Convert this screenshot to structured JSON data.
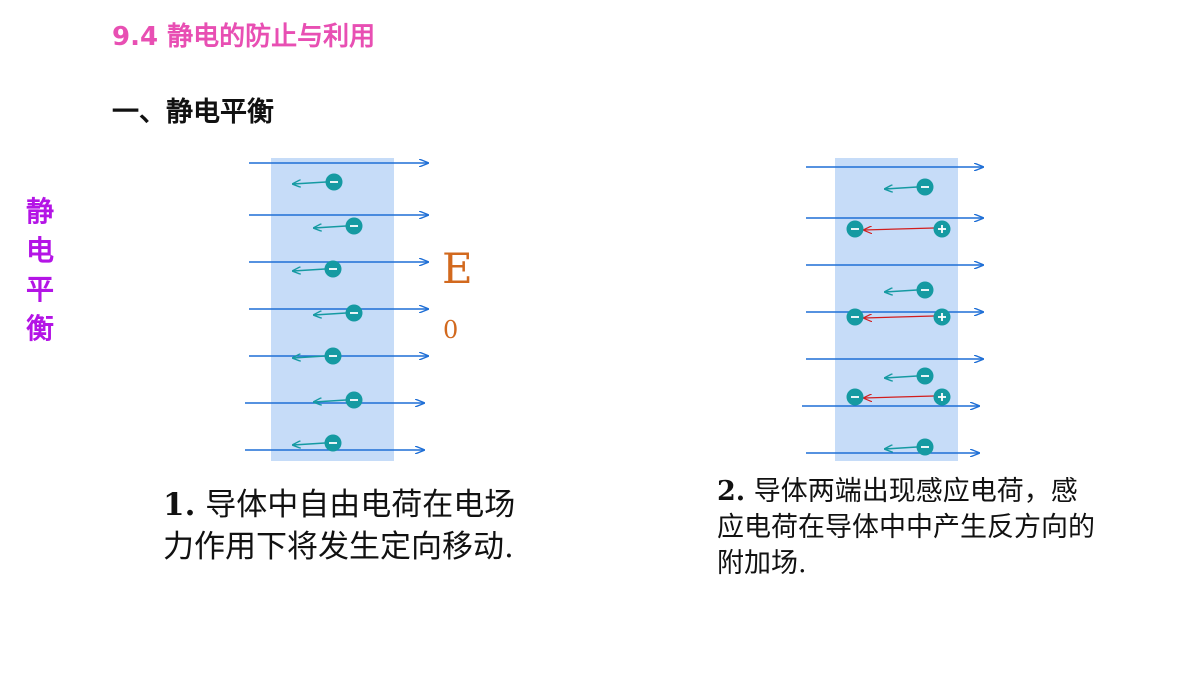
{
  "header": {
    "title": "9.4 静电的防止与利用",
    "section": "一、静电平衡"
  },
  "sidebar": {
    "chars": [
      "静",
      "电",
      "平",
      "衡"
    ]
  },
  "diagram1": {
    "field_label": "E",
    "field_subscript": "0"
  },
  "captions": {
    "c1_num": "1.",
    "c1_text": " 导体中自由电荷在电场力作用下将发生定向移动.",
    "c2_num": "2.",
    "c2_text": " 导体两端出现感应电荷，感应电荷在导体中中产生反方向的附加场."
  },
  "colors": {
    "title": "#e84fb3",
    "side": "#b414e6",
    "field_line": "#1f6fd6",
    "conductor": "#c6dcf8",
    "charge": "#159aa2",
    "induced_field": "#d21e1e",
    "field_label": "#d2691e"
  }
}
